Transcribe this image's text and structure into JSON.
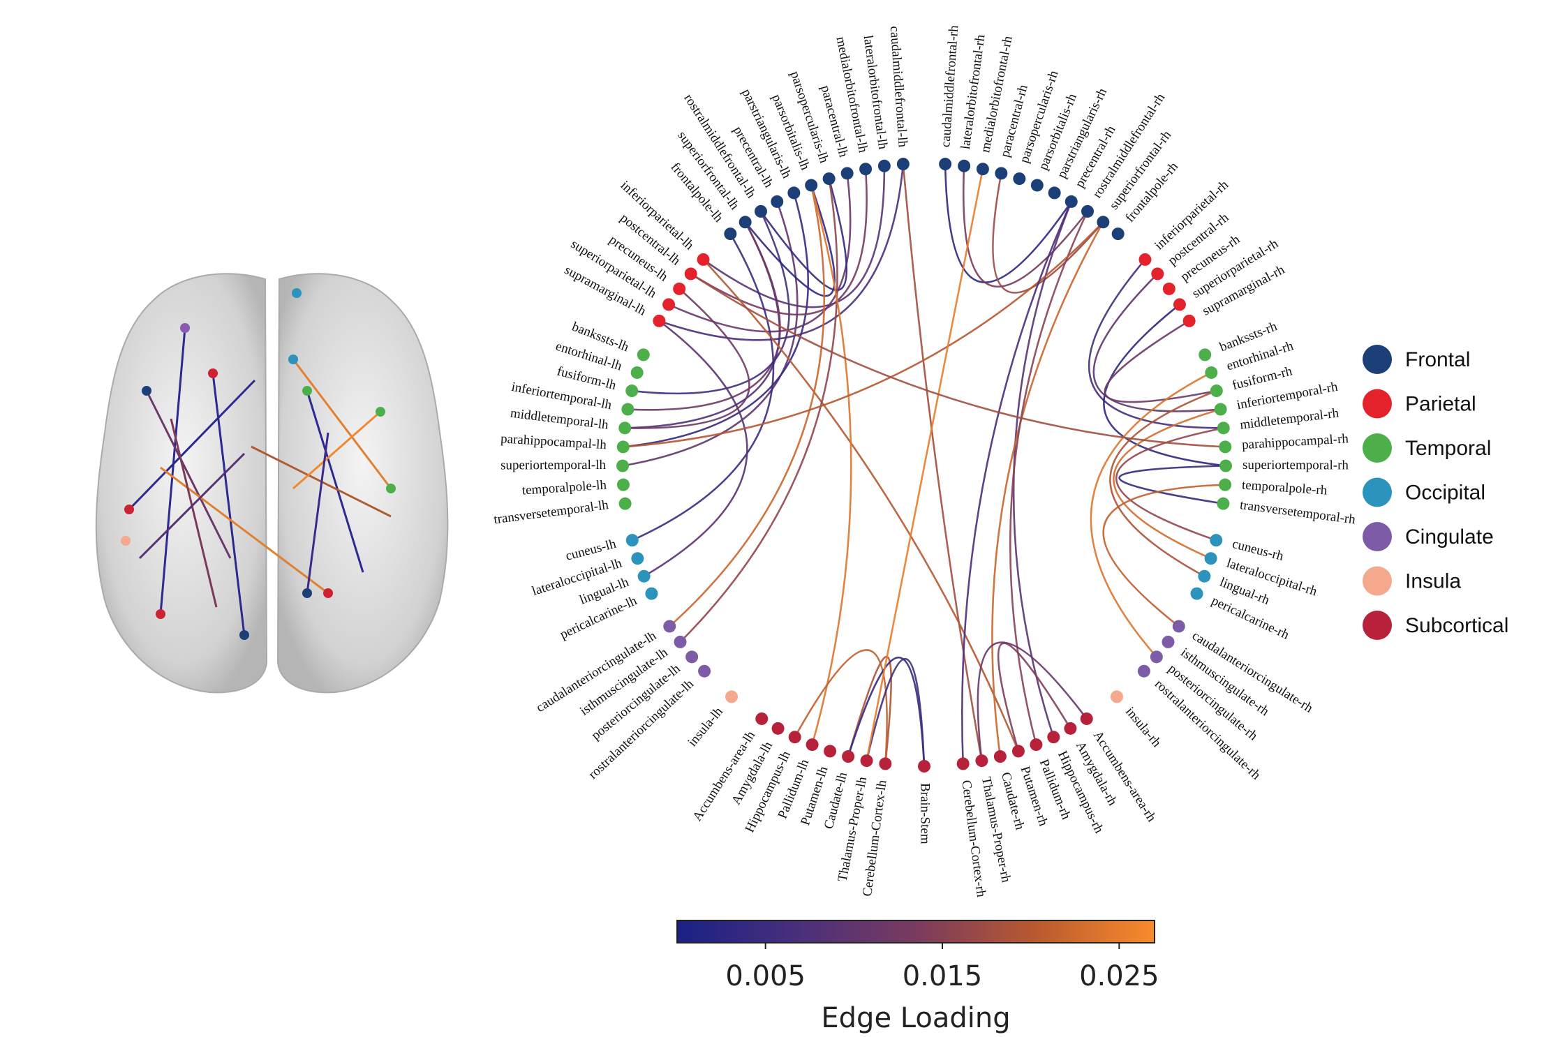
{
  "groups": [
    {
      "name": "Frontal",
      "color": "#1d3f78"
    },
    {
      "name": "Parietal",
      "color": "#e3222b"
    },
    {
      "name": "Temporal",
      "color": "#4daf4a"
    },
    {
      "name": "Occipital",
      "color": "#2b93bc"
    },
    {
      "name": "Cingulate",
      "color": "#7d5ba6"
    },
    {
      "name": "Insula",
      "color": "#f4a88c"
    },
    {
      "name": "Subcortical",
      "color": "#b8213a"
    }
  ],
  "hemispheres": {
    "left": [
      {
        "label": "caudalmiddlefrontal-lh",
        "group": "Frontal"
      },
      {
        "label": "lateralorbitofrontal-lh",
        "group": "Frontal"
      },
      {
        "label": "medialorbitofrontal-lh",
        "group": "Frontal"
      },
      {
        "label": "paracentral-lh",
        "group": "Frontal"
      },
      {
        "label": "parsopercularis-lh",
        "group": "Frontal"
      },
      {
        "label": "parsorbitalis-lh",
        "group": "Frontal"
      },
      {
        "label": "parstriangularis-lh",
        "group": "Frontal"
      },
      {
        "label": "precentral-lh",
        "group": "Frontal"
      },
      {
        "label": "rostralmiddlefrontal-lh",
        "group": "Frontal"
      },
      {
        "label": "superiorfrontal-lh",
        "group": "Frontal"
      },
      {
        "label": "frontalpole-lh",
        "group": "Frontal"
      },
      {
        "label": "inferiorparietal-lh",
        "group": "Parietal"
      },
      {
        "label": "postcentral-lh",
        "group": "Parietal"
      },
      {
        "label": "precuneus-lh",
        "group": "Parietal"
      },
      {
        "label": "superiorparietal-lh",
        "group": "Parietal"
      },
      {
        "label": "supramarginal-lh",
        "group": "Parietal"
      },
      {
        "label": "bankssts-lh",
        "group": "Temporal"
      },
      {
        "label": "entorhinal-lh",
        "group": "Temporal"
      },
      {
        "label": "fusiform-lh",
        "group": "Temporal"
      },
      {
        "label": "inferiortemporal-lh",
        "group": "Temporal"
      },
      {
        "label": "middletemporal-lh",
        "group": "Temporal"
      },
      {
        "label": "parahippocampal-lh",
        "group": "Temporal"
      },
      {
        "label": "superiortemporal-lh",
        "group": "Temporal"
      },
      {
        "label": "temporalpole-lh",
        "group": "Temporal"
      },
      {
        "label": "transversetemporal-lh",
        "group": "Temporal"
      },
      {
        "label": "cuneus-lh",
        "group": "Occipital"
      },
      {
        "label": "lateraloccipital-lh",
        "group": "Occipital"
      },
      {
        "label": "lingual-lh",
        "group": "Occipital"
      },
      {
        "label": "pericalcarine-lh",
        "group": "Occipital"
      },
      {
        "label": "caudalanteriorcingulate-lh",
        "group": "Cingulate"
      },
      {
        "label": "isthmuscingulate-lh",
        "group": "Cingulate"
      },
      {
        "label": "posteriorcingulate-lh",
        "group": "Cingulate"
      },
      {
        "label": "rostralanteriorcingulate-lh",
        "group": "Cingulate"
      },
      {
        "label": "insula-lh",
        "group": "Insula"
      },
      {
        "label": "Accumbens-area-lh",
        "group": "Subcortical"
      },
      {
        "label": "Amygdala-lh",
        "group": "Subcortical"
      },
      {
        "label": "Hippocampus-lh",
        "group": "Subcortical"
      },
      {
        "label": "Pallidum-lh",
        "group": "Subcortical"
      },
      {
        "label": "Putamen-lh",
        "group": "Subcortical"
      },
      {
        "label": "Caudate-lh",
        "group": "Subcortical"
      },
      {
        "label": "Thalamus-Proper-lh",
        "group": "Subcortical"
      },
      {
        "label": "Cerebellum-Cortex-lh",
        "group": "Subcortical"
      }
    ],
    "right": [
      {
        "label": "caudalmiddlefrontal-rh",
        "group": "Frontal"
      },
      {
        "label": "lateralorbitofrontal-rh",
        "group": "Frontal"
      },
      {
        "label": "medialorbitofrontal-rh",
        "group": "Frontal"
      },
      {
        "label": "paracentral-rh",
        "group": "Frontal"
      },
      {
        "label": "parsopercularis-rh",
        "group": "Frontal"
      },
      {
        "label": "parsorbitalis-rh",
        "group": "Frontal"
      },
      {
        "label": "parstriangularis-rh",
        "group": "Frontal"
      },
      {
        "label": "precentral-rh",
        "group": "Frontal"
      },
      {
        "label": "rostralmiddlefrontal-rh",
        "group": "Frontal"
      },
      {
        "label": "superiorfrontal-rh",
        "group": "Frontal"
      },
      {
        "label": "frontalpole-rh",
        "group": "Frontal"
      },
      {
        "label": "inferiorparietal-rh",
        "group": "Parietal"
      },
      {
        "label": "postcentral-rh",
        "group": "Parietal"
      },
      {
        "label": "precuneus-rh",
        "group": "Parietal"
      },
      {
        "label": "superiorparietal-rh",
        "group": "Parietal"
      },
      {
        "label": "supramarginal-rh",
        "group": "Parietal"
      },
      {
        "label": "bankssts-rh",
        "group": "Temporal"
      },
      {
        "label": "entorhinal-rh",
        "group": "Temporal"
      },
      {
        "label": "fusiform-rh",
        "group": "Temporal"
      },
      {
        "label": "inferiortemporal-rh",
        "group": "Temporal"
      },
      {
        "label": "middletemporal-rh",
        "group": "Temporal"
      },
      {
        "label": "parahippocampal-rh",
        "group": "Temporal"
      },
      {
        "label": "superiortemporal-rh",
        "group": "Temporal"
      },
      {
        "label": "temporalpole-rh",
        "group": "Temporal"
      },
      {
        "label": "transversetemporal-rh",
        "group": "Temporal"
      },
      {
        "label": "cuneus-rh",
        "group": "Occipital"
      },
      {
        "label": "lateraloccipital-rh",
        "group": "Occipital"
      },
      {
        "label": "lingual-rh",
        "group": "Occipital"
      },
      {
        "label": "pericalcarine-rh",
        "group": "Occipital"
      },
      {
        "label": "caudalanteriorcingulate-rh",
        "group": "Cingulate"
      },
      {
        "label": "isthmuscingulate-rh",
        "group": "Cingulate"
      },
      {
        "label": "posteriorcingulate-rh",
        "group": "Cingulate"
      },
      {
        "label": "rostralanteriorcingulate-rh",
        "group": "Cingulate"
      },
      {
        "label": "insula-rh",
        "group": "Insula"
      },
      {
        "label": "Accumbens-area-rh",
        "group": "Subcortical"
      },
      {
        "label": "Amygdala-rh",
        "group": "Subcortical"
      },
      {
        "label": "Hippocampus-rh",
        "group": "Subcortical"
      },
      {
        "label": "Pallidum-rh",
        "group": "Subcortical"
      },
      {
        "label": "Putamen-rh",
        "group": "Subcortical"
      },
      {
        "label": "Caudate-rh",
        "group": "Subcortical"
      },
      {
        "label": "Thalamus-Proper-rh",
        "group": "Subcortical"
      },
      {
        "label": "Cerebellum-Cortex-rh",
        "group": "Subcortical"
      }
    ],
    "midline": [
      {
        "label": "Brain-Stem",
        "group": "Subcortical"
      }
    ]
  },
  "edges": [
    {
      "source": "superiorfrontal-lh",
      "target": "middletemporal-lh",
      "loading": 0.008
    },
    {
      "source": "superiorfrontal-lh",
      "target": "inferiortemporal-lh",
      "loading": 0.012
    },
    {
      "source": "rostralmiddlefrontal-lh",
      "target": "fusiform-lh",
      "loading": 0.006
    },
    {
      "source": "precentral-lh",
      "target": "superiortemporal-lh",
      "loading": 0.01
    },
    {
      "source": "parstriangularis-lh",
      "target": "parahippocampal-lh",
      "loading": 0.004
    },
    {
      "source": "caudalmiddlefrontal-lh",
      "target": "supramarginal-lh",
      "loading": 0.007
    },
    {
      "source": "lateralorbitofrontal-lh",
      "target": "inferiorparietal-lh",
      "loading": 0.009
    },
    {
      "source": "medialorbitofrontal-lh",
      "target": "postcentral-lh",
      "loading": 0.013
    },
    {
      "source": "paracentral-lh",
      "target": "superiorparietal-lh",
      "loading": 0.011
    },
    {
      "source": "caudalmiddlefrontal-lh",
      "target": "Thalamus-Proper-rh",
      "loading": 0.018
    },
    {
      "source": "frontalpole-lh",
      "target": "cuneus-lh",
      "loading": 0.005
    },
    {
      "source": "superiorfrontal-lh",
      "target": "parsorbitalis-lh",
      "loading": 0.003
    },
    {
      "source": "rostralmiddlefrontal-lh",
      "target": "parsopercularis-lh",
      "loading": 0.004
    },
    {
      "source": "inferiorparietal-lh",
      "target": "Putamen-rh",
      "loading": 0.02
    },
    {
      "source": "supramarginal-lh",
      "target": "lingual-lh",
      "loading": 0.009
    },
    {
      "source": "precuneus-lh",
      "target": "middletemporal-lh",
      "loading": 0.012
    },
    {
      "source": "caudalanteriorcingulate-lh",
      "target": "parsorbitalis-lh",
      "loading": 0.022
    },
    {
      "source": "isthmuscingulate-lh",
      "target": "parsopercularis-lh",
      "loading": 0.016
    },
    {
      "source": "Pallidum-lh",
      "target": "parsorbitalis-lh",
      "loading": 0.024
    },
    {
      "source": "Caudate-lh",
      "target": "Cerebellum-Cortex-lh",
      "loading": 0.019
    },
    {
      "source": "Hippocampus-lh",
      "target": "Cerebellum-Cortex-lh",
      "loading": 0.021
    },
    {
      "source": "Brain-Stem",
      "target": "Caudate-lh",
      "loading": 0.004
    },
    {
      "source": "Brain-Stem",
      "target": "Thalamus-Proper-lh",
      "loading": 0.006
    },
    {
      "source": "caudalmiddlefrontal-rh",
      "target": "precentral-rh",
      "loading": 0.003
    },
    {
      "source": "lateralorbitofrontal-rh",
      "target": "rostralmiddlefrontal-rh",
      "loading": 0.013
    },
    {
      "source": "paracentral-rh",
      "target": "superiorfrontal-rh",
      "loading": 0.017
    },
    {
      "source": "precentral-rh",
      "target": "Hippocampus-rh",
      "loading": 0.009
    },
    {
      "source": "superiorfrontal-rh",
      "target": "Caudate-rh",
      "loading": 0.022
    },
    {
      "source": "rostralmiddlefrontal-rh",
      "target": "Pallidum-rh",
      "loading": 0.015
    },
    {
      "source": "superiorfrontal-rh",
      "target": "parahippocampal-lh",
      "loading": 0.02
    },
    {
      "source": "medialorbitofrontal-rh",
      "target": "Thalamus-Proper-lh",
      "loading": 0.025
    },
    {
      "source": "inferiorparietal-rh",
      "target": "middletemporal-rh",
      "loading": 0.006
    },
    {
      "source": "postcentral-rh",
      "target": "inferiortemporal-rh",
      "loading": 0.01
    },
    {
      "source": "superiorparietal-rh",
      "target": "superiortemporal-rh",
      "loading": 0.003
    },
    {
      "source": "supramarginal-rh",
      "target": "fusiform-rh",
      "loading": 0.012
    },
    {
      "source": "middletemporal-rh",
      "target": "cuneus-rh",
      "loading": 0.016
    },
    {
      "source": "inferiortemporal-rh",
      "target": "lateraloccipital-rh",
      "loading": 0.023
    },
    {
      "source": "superiortemporal-rh",
      "target": "transversetemporal-rh",
      "loading": 0.004
    },
    {
      "source": "fusiform-rh",
      "target": "lingual-rh",
      "loading": 0.019
    },
    {
      "source": "caudalanteriorcingulate-rh",
      "target": "temporalpole-rh",
      "loading": 0.021
    },
    {
      "source": "posteriorcingulate-rh",
      "target": "entorhinal-rh",
      "loading": 0.024
    },
    {
      "source": "Putamen-rh",
      "target": "Amygdala-rh",
      "loading": 0.014
    },
    {
      "source": "Thalamus-Proper-rh",
      "target": "Accumbens-area-rh",
      "loading": 0.011
    },
    {
      "source": "precentral-rh",
      "target": "Cerebellum-Cortex-rh",
      "loading": 0.007
    },
    {
      "source": "postcentral-lh",
      "target": "parahippocampal-rh",
      "loading": 0.018
    }
  ],
  "colorbar": {
    "label": "Edge Loading",
    "lim": [
      0,
      0.027
    ],
    "ticks": [
      0.005,
      0.015,
      0.025
    ],
    "colors": [
      "#1a2184",
      "#482f7c",
      "#7a3b5f",
      "#b8592f",
      "#f98b2c"
    ]
  }
}
